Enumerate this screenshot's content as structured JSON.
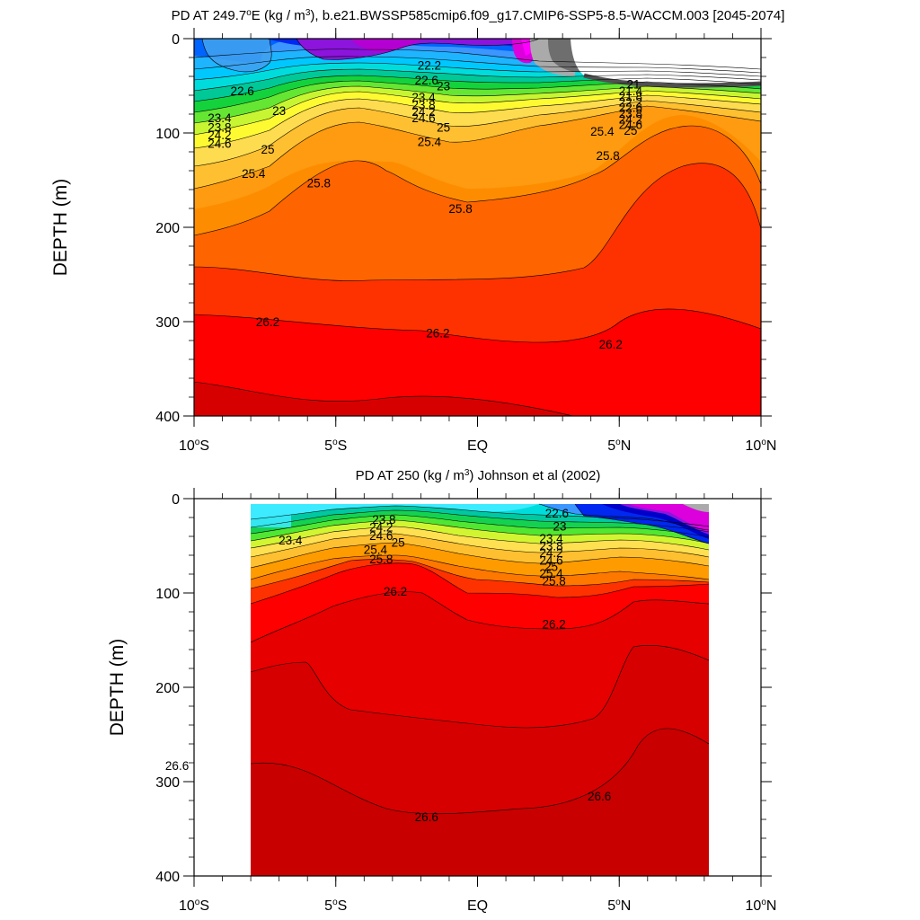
{
  "chart_data": [
    {
      "type": "contour",
      "title_parts": [
        "PD AT 249.7",
        "o",
        "E (kg / m",
        "3",
        "), b.e21.BWSSP585cmip6.f09_g17.CMIP6-SSP5-8.5-WACCM.003 [2045-2074]"
      ],
      "ylabel": "DEPTH (m)",
      "ylim": [
        400,
        0
      ],
      "xlim": [
        -10,
        10
      ],
      "yticks": [
        {
          "value": 0,
          "label": "0"
        },
        {
          "value": 100,
          "label": "100"
        },
        {
          "value": 200,
          "label": "200"
        },
        {
          "value": 300,
          "label": "300"
        },
        {
          "value": 400,
          "label": "400"
        }
      ],
      "xticks": [
        {
          "value": -10,
          "label": "10",
          "deg": "o",
          "hemi": "S"
        },
        {
          "value": -5,
          "label": "5",
          "deg": "o",
          "hemi": "S"
        },
        {
          "value": 0,
          "label": "EQ",
          "deg": "",
          "hemi": ""
        },
        {
          "value": 5,
          "label": "5",
          "deg": "o",
          "hemi": "N"
        },
        {
          "value": 10,
          "label": "10",
          "deg": "o",
          "hemi": "N"
        }
      ],
      "data_extent_lat": [
        -9.7,
        10.0
      ],
      "contour_labels": [
        {
          "text": "22.2",
          "lat": -1.7,
          "depth": 28
        },
        {
          "text": "22.6",
          "lat": -1.8,
          "depth": 44
        },
        {
          "text": "23",
          "lat": -1.2,
          "depth": 50
        },
        {
          "text": "22.6",
          "lat": -8.3,
          "depth": 55
        },
        {
          "text": "23",
          "lat": -7.0,
          "depth": 76
        },
        {
          "text": "23.4",
          "lat": -1.9,
          "depth": 62
        },
        {
          "text": "23.8",
          "lat": -1.9,
          "depth": 70
        },
        {
          "text": "24.2",
          "lat": -1.9,
          "depth": 77
        },
        {
          "text": "24.6",
          "lat": -1.9,
          "depth": 84
        },
        {
          "text": "23.4",
          "lat": -9.1,
          "depth": 84
        },
        {
          "text": "23.8",
          "lat": -9.1,
          "depth": 94
        },
        {
          "text": "24.2",
          "lat": -9.1,
          "depth": 102
        },
        {
          "text": "24.6",
          "lat": -9.1,
          "depth": 111
        },
        {
          "text": "25",
          "lat": -7.4,
          "depth": 117
        },
        {
          "text": "25",
          "lat": -1.2,
          "depth": 94
        },
        {
          "text": "25.4",
          "lat": -1.7,
          "depth": 109
        },
        {
          "text": "25.4",
          "lat": -7.9,
          "depth": 143
        },
        {
          "text": "25.8",
          "lat": -5.6,
          "depth": 153
        },
        {
          "text": "25.8",
          "lat": -0.6,
          "depth": 180
        },
        {
          "text": "21",
          "lat": 5.5,
          "depth": 48
        },
        {
          "text": "21.4",
          "lat": 5.4,
          "depth": 55
        },
        {
          "text": "21.8",
          "lat": 5.4,
          "depth": 61
        },
        {
          "text": "22.2",
          "lat": 5.4,
          "depth": 67
        },
        {
          "text": "22.6",
          "lat": 5.4,
          "depth": 73
        },
        {
          "text": "23.8",
          "lat": 5.4,
          "depth": 79
        },
        {
          "text": "24.2",
          "lat": 5.4,
          "depth": 85
        },
        {
          "text": "24.6",
          "lat": 5.4,
          "depth": 91
        },
        {
          "text": "25",
          "lat": 5.4,
          "depth": 97
        },
        {
          "text": "25.4",
          "lat": 4.4,
          "depth": 98
        },
        {
          "text": "25.8",
          "lat": 4.6,
          "depth": 124
        },
        {
          "text": "26.2",
          "lat": -7.4,
          "depth": 300
        },
        {
          "text": "26.2",
          "lat": -1.4,
          "depth": 312
        },
        {
          "text": "26.2",
          "lat": 4.7,
          "depth": 324
        }
      ]
    },
    {
      "type": "contour",
      "title_parts": [
        "PD AT 250 (kg / m",
        "3",
        ") Johnson et al (2002)"
      ],
      "ylabel": "DEPTH (m)",
      "ylim": [
        400,
        0
      ],
      "xlim": [
        -10,
        10
      ],
      "yticks": [
        {
          "value": 0,
          "label": "0"
        },
        {
          "value": 100,
          "label": "100"
        },
        {
          "value": 200,
          "label": "200"
        },
        {
          "value": 300,
          "label": "300"
        },
        {
          "value": 400,
          "label": "400"
        }
      ],
      "xticks": [
        {
          "value": -10,
          "label": "10",
          "deg": "o",
          "hemi": "S"
        },
        {
          "value": -5,
          "label": "5",
          "deg": "o",
          "hemi": "S"
        },
        {
          "value": 0,
          "label": "EQ",
          "deg": "",
          "hemi": ""
        },
        {
          "value": 5,
          "label": "5",
          "deg": "o",
          "hemi": "N"
        },
        {
          "value": 10,
          "label": "10",
          "deg": "o",
          "hemi": "N"
        }
      ],
      "data_extent_lat": [
        -8.0,
        8.2
      ],
      "contour_labels": [
        {
          "text": "23.4",
          "lat": -6.6,
          "depth": 44
        },
        {
          "text": "23.8",
          "lat": -3.3,
          "depth": 22
        },
        {
          "text": "24.2",
          "lat": -3.4,
          "depth": 30
        },
        {
          "text": "24.6",
          "lat": -3.4,
          "depth": 39
        },
        {
          "text": "25",
          "lat": -2.8,
          "depth": 46
        },
        {
          "text": "25.4",
          "lat": -3.6,
          "depth": 54
        },
        {
          "text": "25.8",
          "lat": -3.4,
          "depth": 64
        },
        {
          "text": "26.2",
          "lat": -2.9,
          "depth": 98
        },
        {
          "text": "22.6",
          "lat": 2.8,
          "depth": 15
        },
        {
          "text": "23",
          "lat": 2.9,
          "depth": 29
        },
        {
          "text": "23.4",
          "lat": 2.6,
          "depth": 42
        },
        {
          "text": "23.8",
          "lat": 2.6,
          "depth": 50
        },
        {
          "text": "24.2",
          "lat": 2.6,
          "depth": 57
        },
        {
          "text": "24.6",
          "lat": 2.6,
          "depth": 65
        },
        {
          "text": "25",
          "lat": 2.6,
          "depth": 72
        },
        {
          "text": "25.4",
          "lat": 2.6,
          "depth": 79
        },
        {
          "text": "25.8",
          "lat": 2.7,
          "depth": 87
        },
        {
          "text": "26.2",
          "lat": 2.7,
          "depth": 133
        },
        {
          "text": "26.6",
          "lat": -10.6,
          "depth": 283
        },
        {
          "text": "26.6",
          "lat": -1.8,
          "depth": 337
        },
        {
          "text": "26.6",
          "lat": 4.3,
          "depth": 315
        }
      ]
    }
  ]
}
